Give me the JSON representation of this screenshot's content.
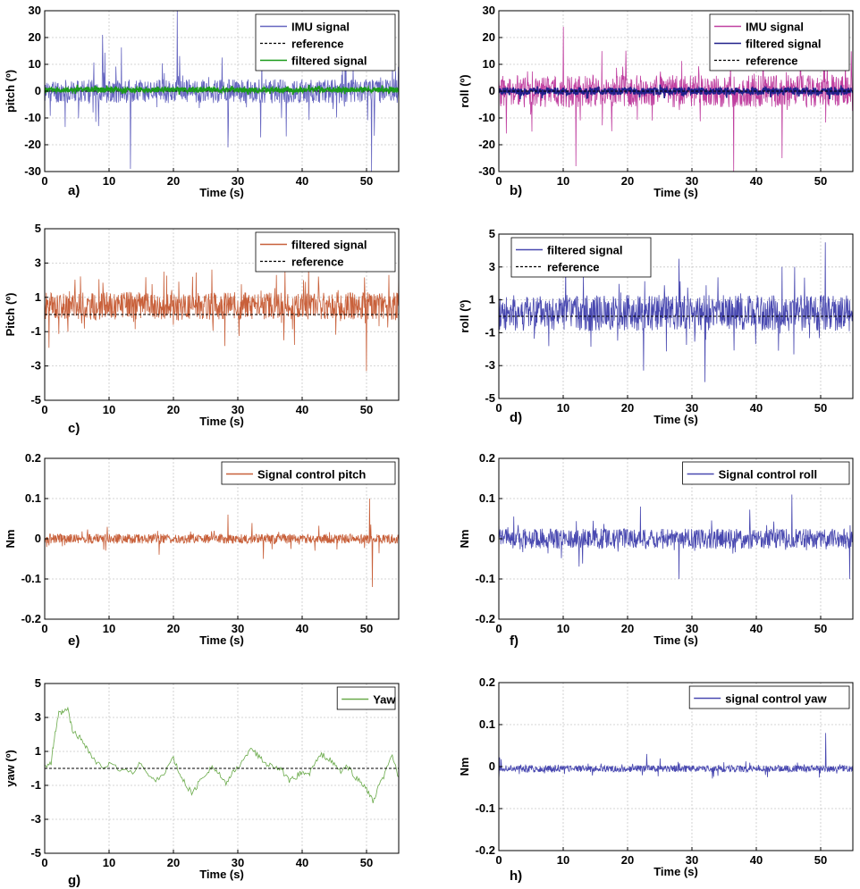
{
  "figure_title": "",
  "chart_data": [
    {
      "id": "a",
      "type": "line",
      "panel_label": "a)",
      "xlabel": "Time (s)",
      "ylabel": "pitch (º)",
      "xlim": [
        0,
        55
      ],
      "ylim": [
        -30,
        30
      ],
      "xticks": [
        0,
        10,
        20,
        30,
        40,
        50
      ],
      "yticks": [
        -30,
        -20,
        -10,
        0,
        10,
        20,
        30
      ],
      "legend": "top-right",
      "series": [
        {
          "name": "IMU signal",
          "color": "#6666c0",
          "style": "solid",
          "kind": "noise",
          "amp": 4.5,
          "spike": 14,
          "spike_rate": 0.06,
          "seed": 11,
          "spikes": [
            [
              13.3,
              -29
            ],
            [
              20.6,
              30
            ],
            [
              50.8,
              -30
            ],
            [
              9,
              21
            ],
            [
              28.5,
              -21
            ]
          ]
        },
        {
          "name": "reference",
          "color": "#000000",
          "style": "dashed",
          "kind": "const",
          "value": 0
        },
        {
          "name": "filtered signal",
          "color": "#1a9a1a",
          "style": "solid",
          "kind": "noise",
          "amp": 0.9,
          "spike": 1.5,
          "spike_rate": 0.05,
          "seed": 5,
          "offset": 0.5
        }
      ]
    },
    {
      "id": "b",
      "type": "line",
      "panel_label": "b)",
      "xlabel": "Time (s)",
      "ylabel": "roll (º)",
      "xlim": [
        0,
        55
      ],
      "ylim": [
        -30,
        30
      ],
      "xticks": [
        0,
        10,
        20,
        30,
        40,
        50
      ],
      "yticks": [
        -30,
        -20,
        -10,
        0,
        10,
        20,
        30
      ],
      "legend": "top-right",
      "series": [
        {
          "name": "IMU signal",
          "color": "#c040a0",
          "style": "solid",
          "kind": "noise",
          "amp": 6,
          "spike": 15,
          "spike_rate": 0.08,
          "seed": 23,
          "spikes": [
            [
              36.5,
              -30
            ],
            [
              12,
              -28
            ],
            [
              10,
              24
            ],
            [
              44,
              -25
            ]
          ]
        },
        {
          "name": "filtered signal",
          "color": "#20208a",
          "style": "solid",
          "kind": "noise",
          "amp": 1.3,
          "spike": 2.5,
          "spike_rate": 0.05,
          "seed": 7,
          "offset": 0
        },
        {
          "name": "reference",
          "color": "#000000",
          "style": "dashed",
          "kind": "const",
          "value": 0
        }
      ]
    },
    {
      "id": "c",
      "type": "line",
      "panel_label": "c)",
      "xlabel": "Time (s)",
      "ylabel": "Pitch (º)",
      "xlim": [
        0,
        55
      ],
      "ylim": [
        -5,
        5
      ],
      "xticks": [
        0,
        10,
        20,
        30,
        40,
        50
      ],
      "yticks": [
        -5,
        -3,
        -1,
        1,
        3,
        5
      ],
      "legend": "top-right",
      "series": [
        {
          "name": "filtered signal",
          "color": "#c8603a",
          "style": "solid",
          "kind": "noise",
          "amp": 0.8,
          "spike": 1.8,
          "spike_rate": 0.08,
          "seed": 31,
          "offset": 0.5,
          "spikes": [
            [
              50,
              -3.3
            ],
            [
              18.5,
              2.5
            ],
            [
              36,
              2.3
            ],
            [
              53.5,
              2.3
            ]
          ]
        },
        {
          "name": "reference",
          "color": "#000000",
          "style": "dashed",
          "kind": "const",
          "value": 0
        }
      ]
    },
    {
      "id": "d",
      "type": "line",
      "panel_label": "d)",
      "xlabel": "Time (s)",
      "ylabel": "roll (º)",
      "xlim": [
        0,
        55
      ],
      "ylim": [
        -5,
        5
      ],
      "xticks": [
        0,
        10,
        20,
        30,
        40,
        50
      ],
      "yticks": [
        -5,
        -3,
        -1,
        1,
        3,
        5
      ],
      "legend": "top-left",
      "series": [
        {
          "name": "filtered signal",
          "color": "#4848b0",
          "style": "solid",
          "kind": "noise",
          "amp": 1.1,
          "spike": 2.2,
          "spike_rate": 0.08,
          "seed": 41,
          "offset": 0.2,
          "spikes": [
            [
              50.7,
              4.5
            ],
            [
              32,
              -4
            ],
            [
              28,
              3.5
            ],
            [
              44,
              3
            ],
            [
              22.5,
              -3.3
            ]
          ]
        },
        {
          "name": "reference",
          "color": "#000000",
          "style": "dashed",
          "kind": "const",
          "value": 0
        }
      ]
    },
    {
      "id": "e",
      "type": "line",
      "panel_label": "e)",
      "xlabel": "Time (s)",
      "ylabel": "Nm",
      "xlim": [
        0,
        55
      ],
      "ylim": [
        -0.2,
        0.2
      ],
      "xticks": [
        0,
        10,
        20,
        30,
        40,
        50
      ],
      "yticks": [
        -0.2,
        -0.1,
        0,
        0.1,
        0.2
      ],
      "legend": "top-right",
      "series": [
        {
          "name": "Signal control pitch",
          "color": "#c8603a",
          "style": "solid",
          "kind": "noise",
          "amp": 0.012,
          "spike": 0.03,
          "spike_rate": 0.06,
          "seed": 53,
          "offset": 0,
          "spikes": [
            [
              50.5,
              0.1
            ],
            [
              50.9,
              -0.12
            ],
            [
              28.5,
              0.06
            ],
            [
              34,
              -0.05
            ]
          ]
        }
      ]
    },
    {
      "id": "f",
      "type": "line",
      "panel_label": "f)",
      "xlabel": "Time (s)",
      "ylabel": "Nm",
      "xlim": [
        0,
        55
      ],
      "ylim": [
        -0.2,
        0.2
      ],
      "xticks": [
        0,
        10,
        20,
        30,
        40,
        50
      ],
      "yticks": [
        -0.2,
        -0.1,
        0,
        0.1,
        0.2
      ],
      "legend": "top-right",
      "series": [
        {
          "name": "Signal control roll",
          "color": "#4848b0",
          "style": "solid",
          "kind": "noise",
          "amp": 0.025,
          "spike": 0.05,
          "spike_rate": 0.08,
          "seed": 61,
          "offset": 0,
          "spikes": [
            [
              45.5,
              0.11
            ],
            [
              54.5,
              -0.1
            ],
            [
              28,
              -0.1
            ],
            [
              22,
              0.08
            ]
          ]
        }
      ]
    },
    {
      "id": "g",
      "type": "line",
      "panel_label": "g)",
      "xlabel": "Time (s)",
      "ylabel": "yaw (º)",
      "xlim": [
        0,
        55
      ],
      "ylim": [
        -5,
        5
      ],
      "xticks": [
        0,
        10,
        20,
        30,
        40,
        50
      ],
      "yticks": [
        -5,
        -3,
        -1,
        1,
        3,
        5
      ],
      "legend": "top-right",
      "series": [
        {
          "name": "Yaw",
          "color": "#6aaa4a",
          "style": "solid",
          "kind": "path",
          "points": [
            [
              0,
              0.2
            ],
            [
              1,
              0.3
            ],
            [
              1.5,
              1.8
            ],
            [
              2.2,
              3.2
            ],
            [
              3,
              3.3
            ],
            [
              3.6,
              3.5
            ],
            [
              4.3,
              2.2
            ],
            [
              5.2,
              1.9
            ],
            [
              6,
              1.6
            ],
            [
              7,
              0.9
            ],
            [
              8,
              0.3
            ],
            [
              9,
              0.1
            ],
            [
              10,
              0.2
            ],
            [
              12,
              -0.1
            ],
            [
              14,
              -0.2
            ],
            [
              15,
              0.4
            ],
            [
              16,
              -0.4
            ],
            [
              17,
              -0.7
            ],
            [
              18.5,
              -0.3
            ],
            [
              20,
              0.6
            ],
            [
              21,
              -0.4
            ],
            [
              22,
              -1.0
            ],
            [
              23,
              -1.5
            ],
            [
              24,
              -0.8
            ],
            [
              25,
              -0.3
            ],
            [
              26,
              0.1
            ],
            [
              27,
              -0.3
            ],
            [
              28,
              -0.9
            ],
            [
              29,
              -0.4
            ],
            [
              30,
              0.1
            ],
            [
              31,
              0.5
            ],
            [
              32,
              1.3
            ],
            [
              33,
              0.8
            ],
            [
              34,
              0.4
            ],
            [
              35,
              0.2
            ],
            [
              36,
              0.1
            ],
            [
              37,
              -0.2
            ],
            [
              38,
              -0.8
            ],
            [
              39,
              -0.5
            ],
            [
              40,
              -0.2
            ],
            [
              41,
              -0.4
            ],
            [
              42,
              0.3
            ],
            [
              43,
              0.8
            ],
            [
              44,
              0.6
            ],
            [
              45,
              0.2
            ],
            [
              46,
              -0.2
            ],
            [
              47,
              0.1
            ],
            [
              48,
              -0.4
            ],
            [
              49,
              -0.8
            ],
            [
              50,
              -1.2
            ],
            [
              51,
              -2.0
            ],
            [
              52,
              -1.0
            ],
            [
              53,
              -0.2
            ],
            [
              54,
              0.8
            ],
            [
              55,
              -0.5
            ]
          ]
        },
        {
          "name": "reference",
          "color": "#000000",
          "style": "dashed",
          "kind": "const",
          "value": 0,
          "legend_hidden": true
        }
      ]
    },
    {
      "id": "h",
      "type": "line",
      "panel_label": "h)",
      "xlabel": "Time (s)",
      "ylabel": "Nm",
      "xlim": [
        0,
        55
      ],
      "ylim": [
        -0.2,
        0.2
      ],
      "xticks": [
        0,
        10,
        20,
        30,
        40,
        50
      ],
      "yticks": [
        -0.2,
        -0.1,
        0,
        0.1,
        0.2
      ],
      "legend": "top-right",
      "series": [
        {
          "name": "signal control yaw",
          "color": "#4848b0",
          "style": "solid",
          "kind": "noise",
          "amp": 0.008,
          "spike": 0.02,
          "spike_rate": 0.06,
          "seed": 71,
          "offset": -0.005,
          "spikes": [
            [
              50.8,
              0.08
            ],
            [
              23,
              0.03
            ]
          ]
        }
      ]
    }
  ]
}
